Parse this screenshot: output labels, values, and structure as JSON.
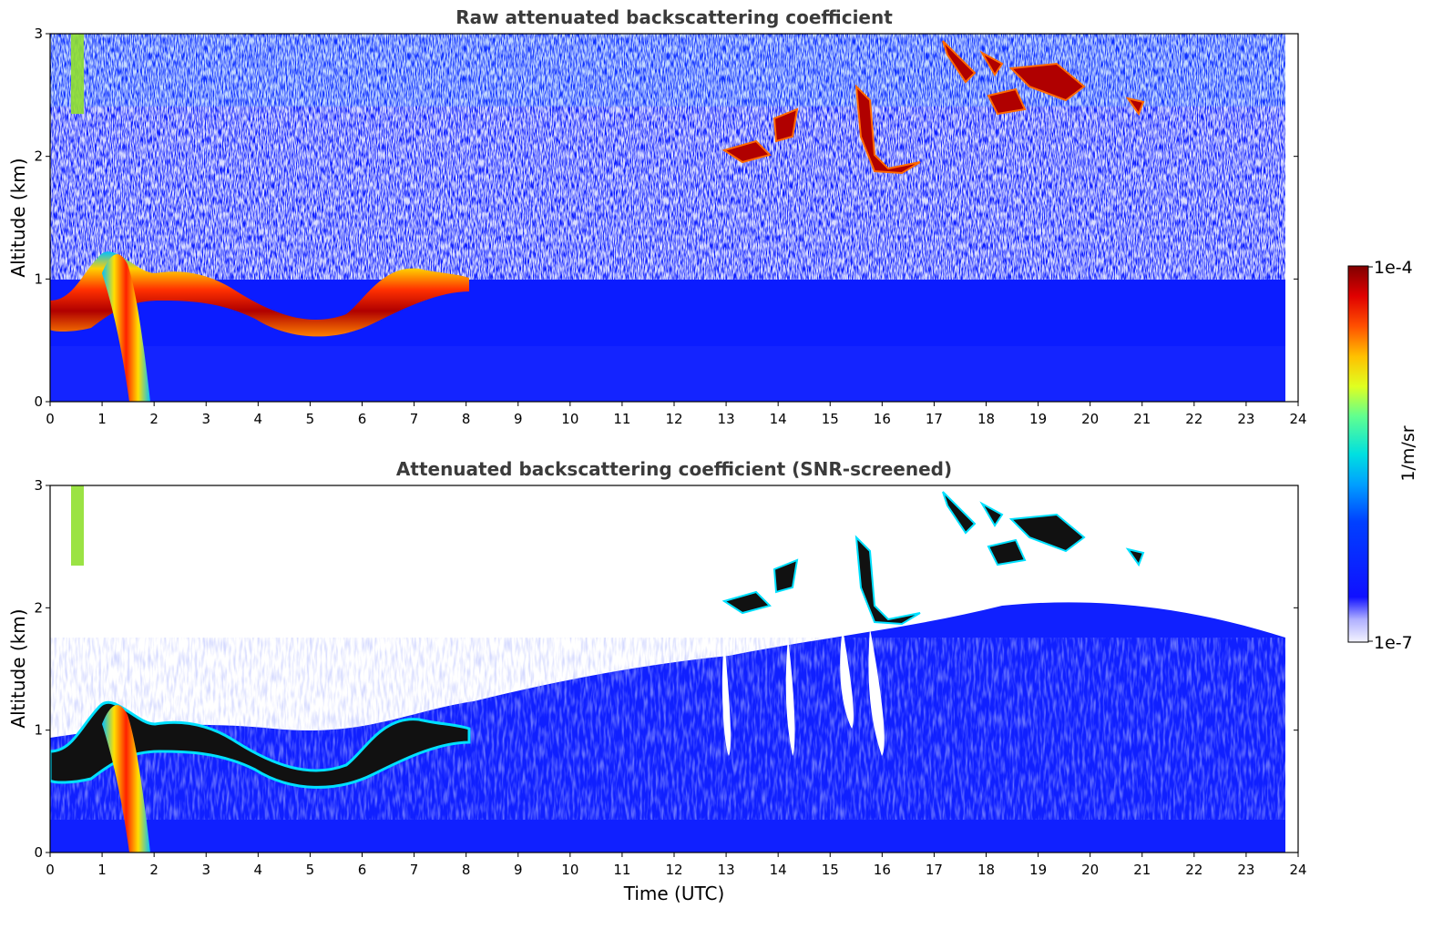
{
  "chart_data": [
    {
      "type": "heatmap",
      "title": "Raw attenuated backscattering coefficient",
      "xlabel": "",
      "ylabel": "Altitude (km)",
      "xlim": [
        0,
        24
      ],
      "ylim": [
        0,
        3
      ],
      "x_ticks": [
        "0",
        "1",
        "2",
        "3",
        "4",
        "5",
        "6",
        "7",
        "8",
        "9",
        "10",
        "11",
        "12",
        "13",
        "14",
        "15",
        "16",
        "17",
        "18",
        "19",
        "20",
        "21",
        "22",
        "23",
        "24"
      ],
      "y_ticks": [
        "0",
        "1",
        "2",
        "3"
      ],
      "data_end_time": 23.75,
      "background_color": "#0000ff",
      "features": [
        {
          "label": "boundary-layer aerosol",
          "time": [
            0,
            23.75
          ],
          "altitude": [
            0,
            0.55
          ],
          "level": 0.08
        },
        {
          "label": "low cloud layer",
          "time": [
            0,
            8.1
          ],
          "altitude": [
            0.45,
            1.25
          ],
          "level": 0.95
        },
        {
          "label": "rain fall streak",
          "time": [
            1.0,
            1.85
          ],
          "altitude": [
            0,
            1.3
          ],
          "level": 0.85
        },
        {
          "label": "high-altitude plume",
          "time": [
            0.45,
            0.65
          ],
          "altitude": [
            2.3,
            3.0
          ],
          "level": 0.5
        },
        {
          "label": "cloud patches",
          "time": [
            13.0,
            16.8
          ],
          "altitude": [
            1.8,
            2.7
          ],
          "level": 0.95
        },
        {
          "label": "cloud patches",
          "time": [
            17.1,
            21.3
          ],
          "altitude": [
            2.2,
            3.0
          ],
          "level": 0.95
        }
      ],
      "noise": "speckled white/blue above ~1 km"
    },
    {
      "type": "heatmap",
      "title": "Attenuated backscattering coefficient (SNR-screened)",
      "xlabel": "Time (UTC)",
      "ylabel": "Altitude (km)",
      "xlim": [
        0,
        24
      ],
      "ylim": [
        0,
        3
      ],
      "x_ticks": [
        "0",
        "1",
        "2",
        "3",
        "4",
        "5",
        "6",
        "7",
        "8",
        "9",
        "10",
        "11",
        "12",
        "13",
        "14",
        "15",
        "16",
        "17",
        "18",
        "19",
        "20",
        "21",
        "22",
        "23",
        "24"
      ],
      "y_ticks": [
        "0",
        "1",
        "2",
        "3"
      ],
      "data_end_time": 23.75,
      "features": [
        {
          "label": "screened aerosol layer",
          "time": [
            0,
            23.75
          ],
          "altitude": [
            0,
            1.4
          ],
          "level": 0.1
        },
        {
          "label": "afternoon aerosol layer",
          "time": [
            8.2,
            23.75
          ],
          "altitude": [
            0,
            2.0
          ],
          "level": 0.1
        },
        {
          "label": "low cloud layer (saturated)",
          "time": [
            0,
            8.1
          ],
          "altitude": [
            0.45,
            1.35
          ],
          "level": 1.0
        },
        {
          "label": "rain fall streak",
          "time": [
            1.0,
            1.85
          ],
          "altitude": [
            0,
            1.3
          ],
          "level": 0.85
        },
        {
          "label": "high-altitude plume",
          "time": [
            0.45,
            0.65
          ],
          "altitude": [
            2.3,
            3.0
          ],
          "level": 0.5
        },
        {
          "label": "cloud patches (saturated)",
          "time": [
            13.0,
            16.8
          ],
          "altitude": [
            1.8,
            2.7
          ],
          "level": 1.0
        },
        {
          "label": "cloud patches (saturated)",
          "time": [
            17.1,
            21.3
          ],
          "altitude": [
            2.2,
            3.0
          ],
          "level": 1.0
        }
      ]
    }
  ],
  "colorbar": {
    "label": "1/m/sr",
    "min_label": "1e-7",
    "max_label": "1e-4",
    "scale": "log",
    "colormap": "jet"
  }
}
